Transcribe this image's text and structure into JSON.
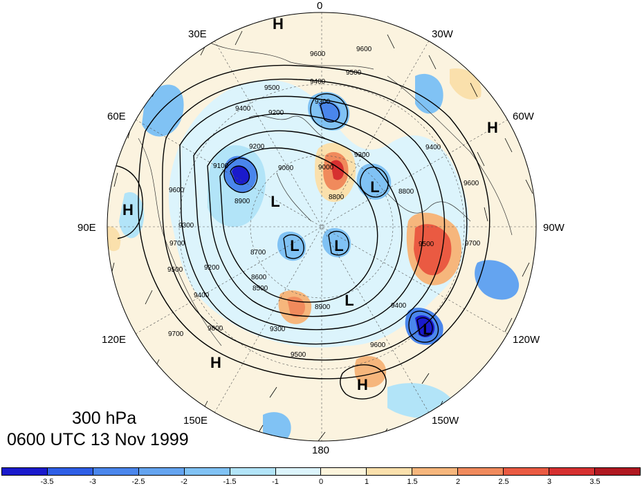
{
  "title": {
    "level": "300 hPa",
    "time": "0600 UTC 13 Nov 1999"
  },
  "longitude_labels": {
    "lon_0": "0",
    "lon_30w": "30W",
    "lon_60w": "60W",
    "lon_90w": "90W",
    "lon_120w": "120W",
    "lon_150w": "150W",
    "lon_180": "180",
    "lon_150e": "150E",
    "lon_120e": "120E",
    "lon_90e": "90E",
    "lon_60e": "60E",
    "lon_30e": "30E"
  },
  "pressure_centers": [
    {
      "type": "H",
      "lon": "10W"
    },
    {
      "type": "H",
      "lon": "55W"
    },
    {
      "type": "H",
      "lon": "95E"
    },
    {
      "type": "H",
      "lon": "145E"
    },
    {
      "type": "H",
      "lon": "170W"
    },
    {
      "type": "L",
      "lon": "70E"
    },
    {
      "type": "L",
      "lon": "105W"
    },
    {
      "type": "L",
      "lon": "95E"
    },
    {
      "type": "L",
      "lon": "130W"
    },
    {
      "type": "L",
      "lon": "160E"
    },
    {
      "type": "L",
      "lon": "135W"
    }
  ],
  "contour_labels": [
    "9600",
    "9600",
    "9500",
    "9400",
    "9500",
    "9400",
    "9200",
    "9300",
    "9200",
    "9000",
    "9100",
    "9000",
    "8900",
    "8800",
    "8700",
    "8600",
    "8800",
    "9300",
    "9400",
    "9500",
    "9600",
    "9700",
    "9700",
    "9300",
    "9600",
    "9500",
    "9400",
    "9800",
    "8900",
    "8500",
    "9200",
    "9300",
    "9400",
    "9500",
    "9600",
    "9700"
  ],
  "colorbar": {
    "colors": [
      "#1a1acc",
      "#2e5ee6",
      "#4a86ec",
      "#64a4f0",
      "#80c2f4",
      "#b2e4f8",
      "#dcf4fc",
      "#fcf4dc",
      "#fae0ac",
      "#f6b67c",
      "#f08a5c",
      "#ea5a42",
      "#d63030",
      "#b01820"
    ],
    "tick_labels": [
      "-3.5",
      "-3",
      "-2.5",
      "-2",
      "-1.5",
      "-1",
      "0",
      "1",
      "1.5",
      "2",
      "2.5",
      "3",
      "3.5"
    ]
  }
}
